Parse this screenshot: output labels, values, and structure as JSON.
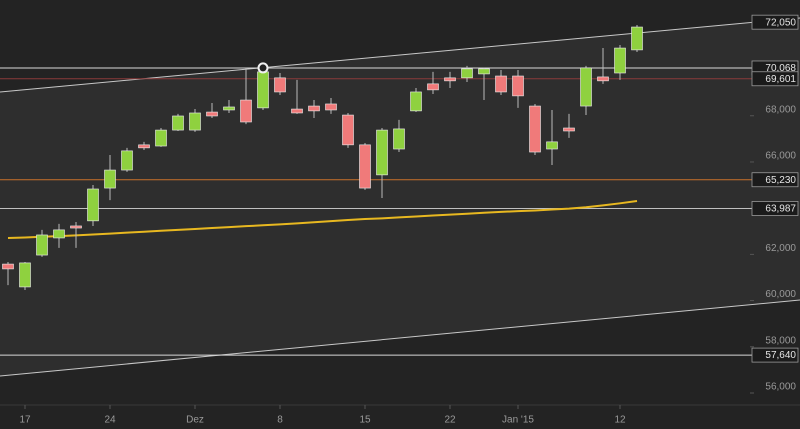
{
  "chart_data": {
    "type": "candlestick",
    "categories": [
      null,
      "17",
      null,
      null,
      null,
      null,
      "24",
      null,
      null,
      null,
      null,
      "Dez",
      null,
      null,
      null,
      null,
      "8",
      null,
      null,
      null,
      null,
      "15",
      null,
      null,
      null,
      null,
      "22",
      null,
      null,
      null,
      "Jan '15",
      null,
      null,
      null,
      null,
      null,
      "12",
      null
    ],
    "open": [
      61580,
      60590,
      61970,
      62710,
      63230,
      63450,
      64870,
      65650,
      66740,
      66690,
      67380,
      67380,
      68160,
      68250,
      68680,
      68340,
      69640,
      68290,
      68420,
      68510,
      68030,
      66740,
      65440,
      66560,
      68210,
      69380,
      69640,
      69640,
      69810,
      69720,
      69720,
      68420,
      66560,
      67470,
      68420,
      69680,
      69850,
      70850
    ],
    "high": [
      61670,
      61670,
      63060,
      63320,
      63400,
      65000,
      66300,
      66610,
      66870,
      67470,
      68080,
      68290,
      68550,
      68680,
      70070,
      70070,
      69850,
      69550,
      68680,
      68770,
      68120,
      66820,
      67470,
      67820,
      69200,
      69900,
      69900,
      70160,
      70070,
      69980,
      69980,
      68510,
      68250,
      68080,
      70160,
      70930,
      71060,
      71930
    ],
    "low": [
      60670,
      60460,
      61890,
      62280,
      62280,
      63230,
      64350,
      65570,
      66520,
      66650,
      67340,
      67300,
      67900,
      68120,
      67640,
      68250,
      68900,
      68080,
      67900,
      68080,
      66610,
      64790,
      64440,
      66430,
      68160,
      68940,
      69200,
      69460,
      68680,
      68900,
      68340,
      66300,
      65870,
      67040,
      68030,
      69380,
      69550,
      70760
    ],
    "close": [
      61370,
      61630,
      62840,
      63060,
      63140,
      64830,
      65650,
      66480,
      66610,
      67380,
      67990,
      68120,
      67990,
      68380,
      67730,
      69900,
      69030,
      68120,
      68210,
      68250,
      66740,
      64870,
      67380,
      67430,
      69030,
      69120,
      69510,
      70030,
      70030,
      69030,
      68860,
      66430,
      66870,
      67340,
      70070,
      69510,
      70930,
      71840
    ],
    "up_color": "#8fd13f",
    "down_color": "#f07a7a",
    "moving_average": {
      "color": "#e8b820",
      "values": [
        62710,
        62730,
        62760,
        62790,
        62820,
        62860,
        62900,
        62940,
        62980,
        63020,
        63060,
        63100,
        63140,
        63180,
        63220,
        63260,
        63300,
        63340,
        63390,
        63440,
        63490,
        63530,
        63560,
        63600,
        63640,
        63680,
        63720,
        63760,
        63800,
        63840,
        63870,
        63900,
        63940,
        63980,
        64040,
        64120,
        64210,
        64310
      ]
    },
    "trend_lines": [
      {
        "start": 69029,
        "end": 72233,
        "color": "#c8c8c8"
      },
      {
        "start": 56735,
        "end": 60025,
        "color": "#c8c8c8"
      }
    ],
    "highlight_index": 15,
    "levels": [
      {
        "value": 72050,
        "label": "72,050"
      },
      {
        "value": 70068,
        "label": "70,068",
        "color": "#d8d8d8"
      },
      {
        "value": 69601,
        "label": "69,601",
        "color": "#8a3a3a"
      },
      {
        "value": 65230,
        "label": "65,230",
        "color": "#c8702a"
      },
      {
        "value": 63987,
        "label": "63,987",
        "color": "#c0c0c0"
      },
      {
        "value": 57640,
        "label": "57,640",
        "color": "#d8d8d8"
      }
    ],
    "ylim": [
      55480,
      73010
    ],
    "yticks": [
      {
        "value": 56000,
        "label": "56,000"
      },
      {
        "value": 58000,
        "label": "58,000"
      },
      {
        "value": 60000,
        "label": "60,000"
      },
      {
        "value": 62000,
        "label": "62,000"
      },
      {
        "value": 66000,
        "label": "66,000"
      },
      {
        "value": 68000,
        "label": "68,000"
      }
    ]
  }
}
